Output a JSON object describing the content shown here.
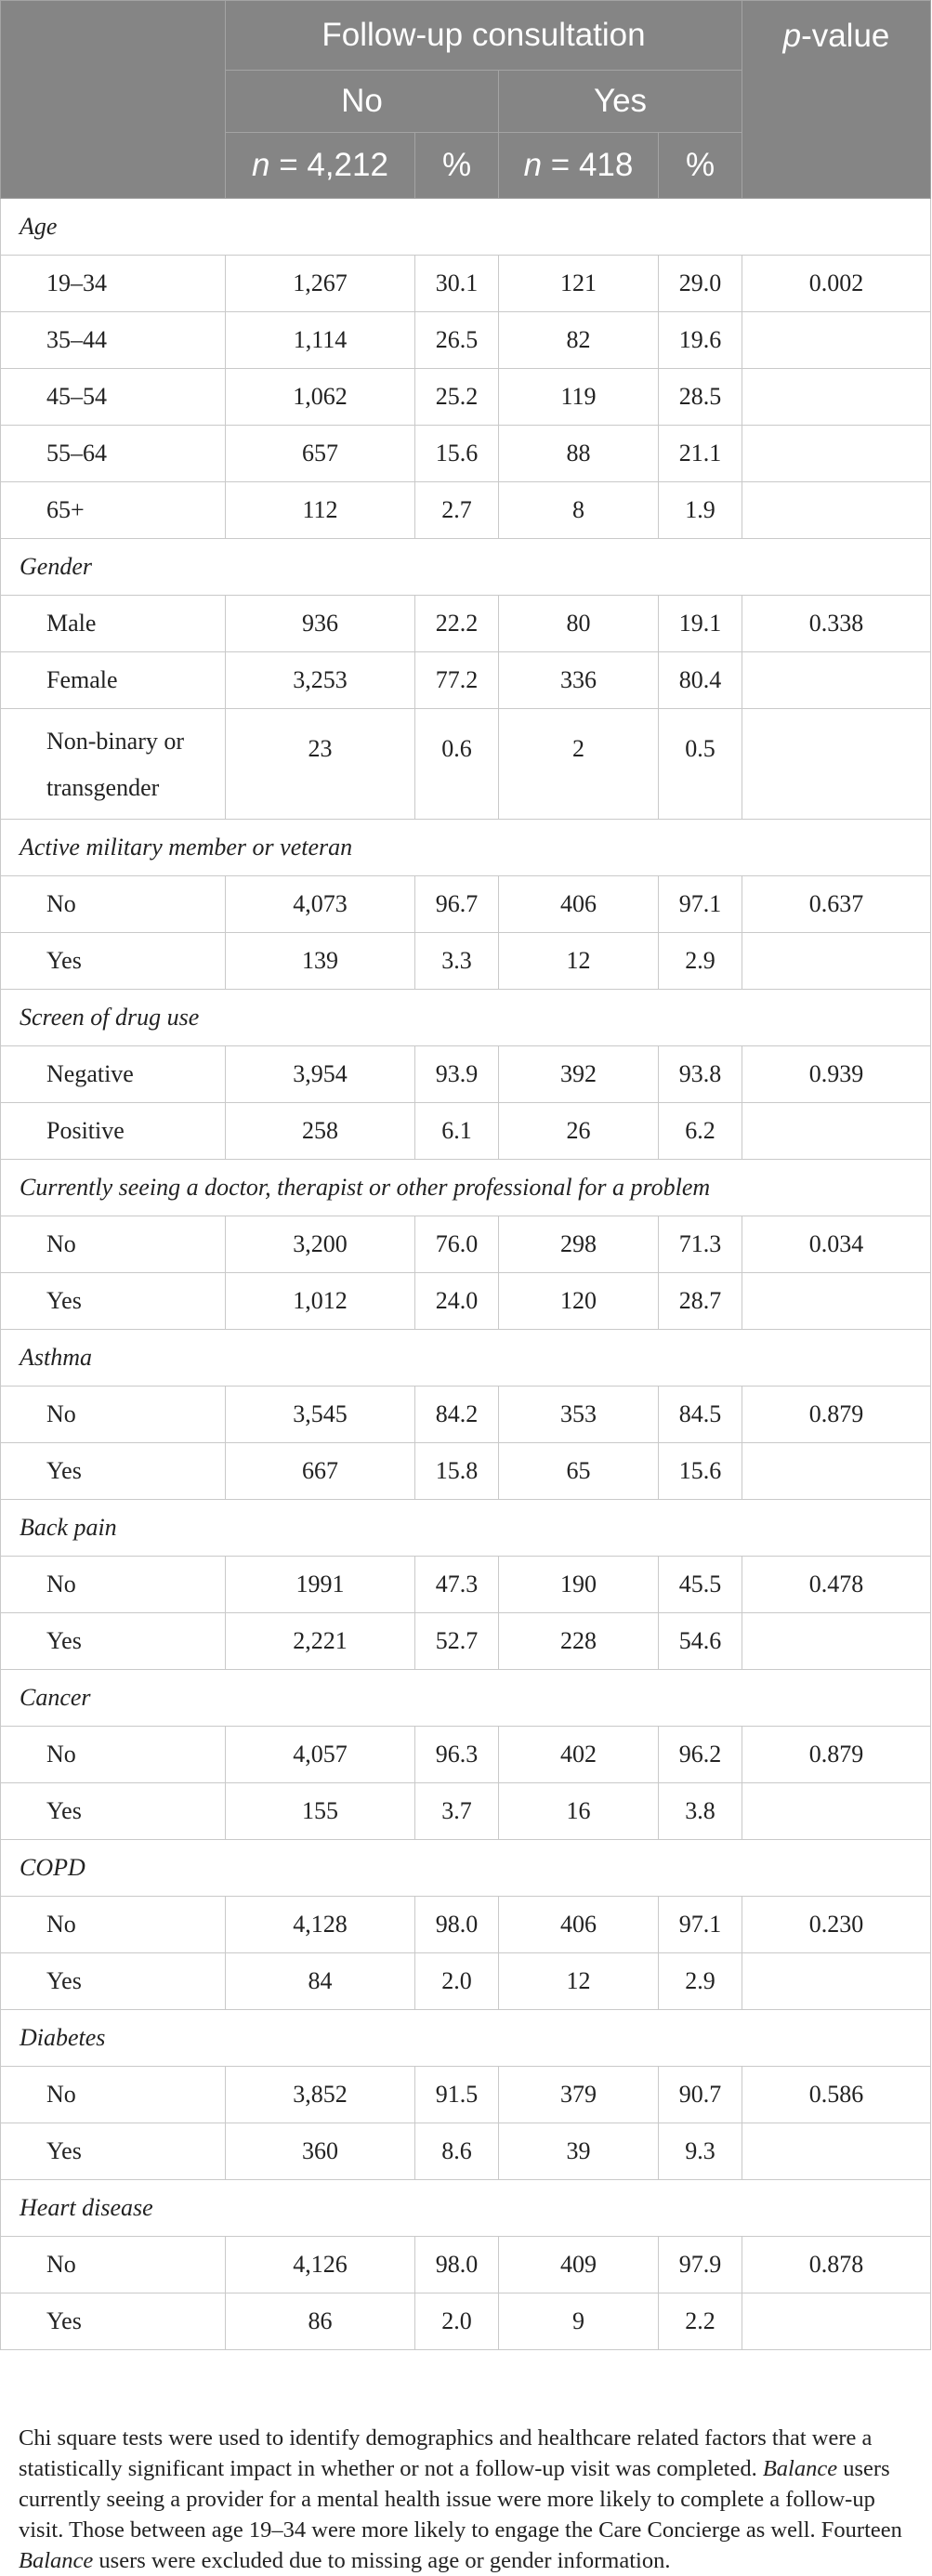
{
  "header": {
    "group_title": "Follow-up consultation",
    "pvalue_prefix": "p",
    "pvalue_suffix": "-value",
    "no_label": "No",
    "yes_label": "Yes",
    "n_prefix": "n",
    "n_no_value": " = 4,212",
    "n_yes_value": " = 418",
    "pct": "%"
  },
  "sections": [
    {
      "title": "Age",
      "rows": [
        {
          "label": "19–34",
          "no_n": "1,267",
          "no_pct": "30.1",
          "yes_n": "121",
          "yes_pct": "29.0",
          "p": "0.002"
        },
        {
          "label": "35–44",
          "no_n": "1,114",
          "no_pct": "26.5",
          "yes_n": "82",
          "yes_pct": "19.6",
          "p": ""
        },
        {
          "label": "45–54",
          "no_n": "1,062",
          "no_pct": "25.2",
          "yes_n": "119",
          "yes_pct": "28.5",
          "p": ""
        },
        {
          "label": "55–64",
          "no_n": "657",
          "no_pct": "15.6",
          "yes_n": "88",
          "yes_pct": "21.1",
          "p": ""
        },
        {
          "label": "65+",
          "no_n": "112",
          "no_pct": "2.7",
          "yes_n": "8",
          "yes_pct": "1.9",
          "p": ""
        }
      ]
    },
    {
      "title": "Gender",
      "rows": [
        {
          "label": "Male",
          "no_n": "936",
          "no_pct": "22.2",
          "yes_n": "80",
          "yes_pct": "19.1",
          "p": "0.338"
        },
        {
          "label": "Female",
          "no_n": "3,253",
          "no_pct": "77.2",
          "yes_n": "336",
          "yes_pct": "80.4",
          "p": ""
        },
        {
          "label_line1": "Non-binary or",
          "label_line2": "transgender",
          "no_n": "23",
          "no_pct": "0.6",
          "yes_n": "2",
          "yes_pct": "0.5",
          "p": ""
        }
      ]
    },
    {
      "title": "Active military member or veteran",
      "rows": [
        {
          "label": "No",
          "no_n": "4,073",
          "no_pct": "96.7",
          "yes_n": "406",
          "yes_pct": "97.1",
          "p": "0.637"
        },
        {
          "label": "Yes",
          "no_n": "139",
          "no_pct": "3.3",
          "yes_n": "12",
          "yes_pct": "2.9",
          "p": ""
        }
      ]
    },
    {
      "title": "Screen of drug use",
      "rows": [
        {
          "label": "Negative",
          "no_n": "3,954",
          "no_pct": "93.9",
          "yes_n": "392",
          "yes_pct": "93.8",
          "p": "0.939"
        },
        {
          "label": "Positive",
          "no_n": "258",
          "no_pct": "6.1",
          "yes_n": "26",
          "yes_pct": "6.2",
          "p": ""
        }
      ]
    },
    {
      "title": "Currently seeing a doctor, therapist or other professional for a problem",
      "rows": [
        {
          "label": "No",
          "no_n": "3,200",
          "no_pct": "76.0",
          "yes_n": "298",
          "yes_pct": "71.3",
          "p": "0.034"
        },
        {
          "label": "Yes",
          "no_n": "1,012",
          "no_pct": "24.0",
          "yes_n": "120",
          "yes_pct": "28.7",
          "p": ""
        }
      ]
    },
    {
      "title": "Asthma",
      "rows": [
        {
          "label": "No",
          "no_n": "3,545",
          "no_pct": "84.2",
          "yes_n": "353",
          "yes_pct": "84.5",
          "p": "0.879"
        },
        {
          "label": "Yes",
          "no_n": "667",
          "no_pct": "15.8",
          "yes_n": "65",
          "yes_pct": "15.6",
          "p": ""
        }
      ]
    },
    {
      "title": "Back pain",
      "rows": [
        {
          "label": "No",
          "no_n": "1991",
          "no_pct": "47.3",
          "yes_n": "190",
          "yes_pct": "45.5",
          "p": "0.478"
        },
        {
          "label": "Yes",
          "no_n": "2,221",
          "no_pct": "52.7",
          "yes_n": "228",
          "yes_pct": "54.6",
          "p": ""
        }
      ]
    },
    {
      "title": "Cancer",
      "rows": [
        {
          "label": "No",
          "no_n": "4,057",
          "no_pct": "96.3",
          "yes_n": "402",
          "yes_pct": "96.2",
          "p": "0.879"
        },
        {
          "label": "Yes",
          "no_n": "155",
          "no_pct": "3.7",
          "yes_n": "16",
          "yes_pct": "3.8",
          "p": ""
        }
      ]
    },
    {
      "title": "COPD",
      "rows": [
        {
          "label": "No",
          "no_n": "4,128",
          "no_pct": "98.0",
          "yes_n": "406",
          "yes_pct": "97.1",
          "p": "0.230"
        },
        {
          "label": "Yes",
          "no_n": "84",
          "no_pct": "2.0",
          "yes_n": "12",
          "yes_pct": "2.9",
          "p": ""
        }
      ]
    },
    {
      "title": "Diabetes",
      "rows": [
        {
          "label": "No",
          "no_n": "3,852",
          "no_pct": "91.5",
          "yes_n": "379",
          "yes_pct": "90.7",
          "p": "0.586"
        },
        {
          "label": "Yes",
          "no_n": "360",
          "no_pct": "8.6",
          "yes_n": "39",
          "yes_pct": "9.3",
          "p": ""
        }
      ]
    },
    {
      "title": "Heart disease",
      "rows": [
        {
          "label": "No",
          "no_n": "4,126",
          "no_pct": "98.0",
          "yes_n": "409",
          "yes_pct": "97.9",
          "p": "0.878"
        },
        {
          "label": "Yes",
          "no_n": "86",
          "no_pct": "2.0",
          "yes_n": "9",
          "yes_pct": "2.2",
          "p": ""
        }
      ]
    }
  ],
  "footnote": {
    "part1": "Chi square tests were used to identify demographics and healthcare related factors that were a statistically significant impact in whether or not a follow-up visit was completed. ",
    "italic1": "Balance",
    "part2": " users currently seeing a provider for a mental health issue were more likely to complete a follow-up visit. Those between age 19–34 were more likely to engage the Care Concierge as well. Fourteen ",
    "italic2": "Balance",
    "part3": " users were excluded due to missing age or gender information."
  },
  "colors": {
    "header_bg": "#858585",
    "header_text": "#ffffff",
    "grid": "#c9c9c9"
  }
}
